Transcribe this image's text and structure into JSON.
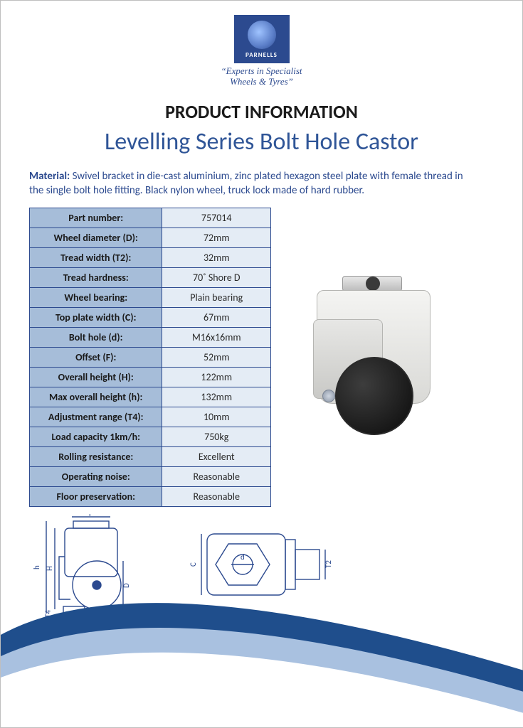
{
  "logo": {
    "brand": "PARNELLS",
    "tagline_line1": "“Experts in Specialist",
    "tagline_line2": "Wheels & Tyres”"
  },
  "headings": {
    "category": "PRODUCT INFORMATION",
    "product": "Levelling Series Bolt Hole Castor"
  },
  "material": {
    "label": "Material:",
    "text": "Swivel bracket in die-cast aluminium, zinc plated hexagon steel plate with female thread in the single bolt hole fitting. Black nylon wheel, truck lock made of hard rubber."
  },
  "spec_table": {
    "rows": [
      {
        "label": "Part number:",
        "value": "757014"
      },
      {
        "label": "Wheel diameter (D):",
        "value": "72mm"
      },
      {
        "label": "Tread width (T2):",
        "value": "32mm"
      },
      {
        "label": "Tread hardness:",
        "value": "70˚ Shore D"
      },
      {
        "label": "Wheel bearing:",
        "value": "Plain bearing"
      },
      {
        "label": "Top plate width (C):",
        "value": "67mm"
      },
      {
        "label": "Bolt hole (d):",
        "value": "M16x16mm"
      },
      {
        "label": "Offset (F):",
        "value": "52mm"
      },
      {
        "label": "Overall height (H):",
        "value": "122mm"
      },
      {
        "label": "Max overall height (h):",
        "value": "132mm"
      },
      {
        "label": "Adjustment range (T4):",
        "value": "10mm"
      },
      {
        "label": "Load capacity 1km/h:",
        "value": "750kg"
      },
      {
        "label": "Rolling resistance:",
        "value": "Excellent"
      },
      {
        "label": "Operating noise:",
        "value": "Reasonable"
      },
      {
        "label": "Floor preservation:",
        "value": "Reasonable"
      }
    ],
    "colors": {
      "label_bg": "#a6bdd9",
      "value_bg": "#e4ecf5",
      "border": "#2c4a8f"
    }
  },
  "diagrams": {
    "side": {
      "labels": [
        "F",
        "h",
        "H",
        "D",
        "T4"
      ]
    },
    "top": {
      "labels": [
        "C",
        "d",
        "T2"
      ]
    },
    "stroke": "#2c4a8f"
  },
  "swoosh_colors": {
    "outer": "#1f4e8c",
    "inner": "#a9c1e0"
  }
}
